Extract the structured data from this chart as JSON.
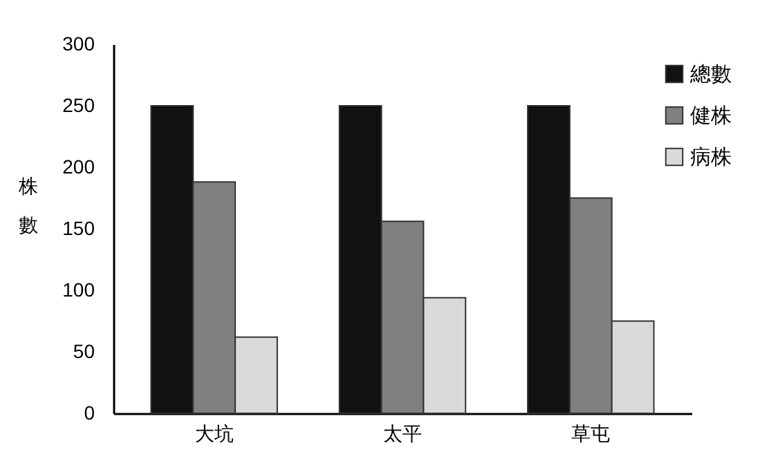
{
  "chart_data": {
    "type": "bar",
    "ylabel": "株數",
    "categories": [
      "大坑",
      "太平",
      "草屯"
    ],
    "series": [
      {
        "name": "總數",
        "color": "#111111",
        "values": [
          250,
          250,
          250
        ]
      },
      {
        "name": "健株",
        "color": "#808080",
        "values": [
          188,
          156,
          175
        ]
      },
      {
        "name": "病株",
        "color": "#d9d9d9",
        "values": [
          62,
          94,
          75
        ]
      }
    ],
    "ylim": [
      0,
      300
    ],
    "yticks": [
      0,
      50,
      100,
      150,
      200,
      250,
      300
    ],
    "grid": false,
    "legend": "top right"
  }
}
